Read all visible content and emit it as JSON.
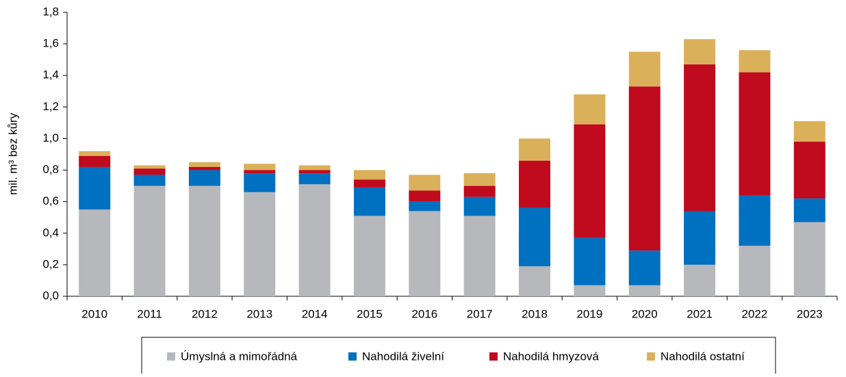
{
  "chart_data": {
    "type": "stacked-bar",
    "y_label": "mil. m³ bez kůry",
    "categories": [
      "2010",
      "2011",
      "2012",
      "2013",
      "2014",
      "2015",
      "2016",
      "2017",
      "2018",
      "2019",
      "2020",
      "2021",
      "2022",
      "2023"
    ],
    "series": [
      {
        "name": "Úmyslná a mimořádná",
        "color": "#b6b8bc",
        "values": [
          0.55,
          0.7,
          0.7,
          0.66,
          0.71,
          0.51,
          0.54,
          0.51,
          0.19,
          0.07,
          0.07,
          0.2,
          0.32,
          0.47
        ]
      },
      {
        "name": "Nahodilá živelní",
        "color": "#0070c0",
        "values": [
          0.27,
          0.07,
          0.1,
          0.12,
          0.07,
          0.18,
          0.06,
          0.12,
          0.37,
          0.3,
          0.22,
          0.34,
          0.32,
          0.15
        ]
      },
      {
        "name": "Nahodilá hmyzová",
        "color": "#c00a1e",
        "values": [
          0.07,
          0.04,
          0.02,
          0.02,
          0.02,
          0.05,
          0.07,
          0.07,
          0.3,
          0.72,
          1.04,
          0.93,
          0.78,
          0.36
        ]
      },
      {
        "name": "Nahodilá ostatní",
        "color": "#dbb05a",
        "values": [
          0.03,
          0.02,
          0.03,
          0.04,
          0.03,
          0.06,
          0.1,
          0.08,
          0.14,
          0.19,
          0.22,
          0.16,
          0.14,
          0.13
        ]
      }
    ],
    "ylim": [
      0,
      1.8
    ],
    "yticks": [
      {
        "value": 0,
        "label": "0,0"
      },
      {
        "value": 0.2,
        "label": "0,2"
      },
      {
        "value": 0.4,
        "label": "0,4"
      },
      {
        "value": 0.6,
        "label": "0,6"
      },
      {
        "value": 0.8,
        "label": "0,8"
      },
      {
        "value": 1.0,
        "label": "1,0"
      },
      {
        "value": 1.2,
        "label": "1,2"
      },
      {
        "value": 1.4,
        "label": "1,4"
      },
      {
        "value": 1.6,
        "label": "1,6"
      },
      {
        "value": 1.8,
        "label": "1,8"
      }
    ]
  }
}
